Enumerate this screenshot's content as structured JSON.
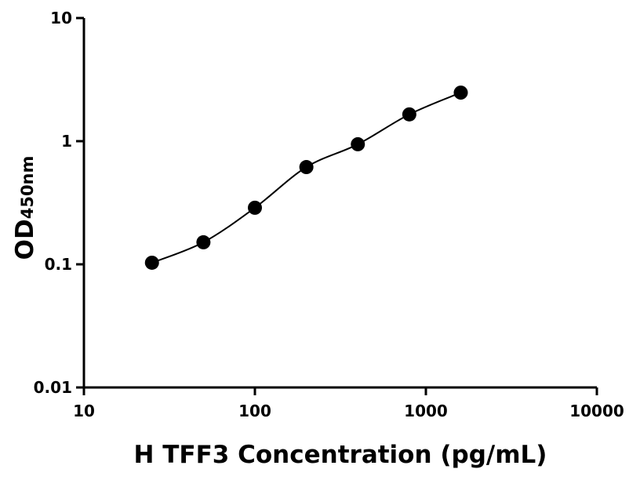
{
  "chart_data": {
    "type": "scatter",
    "x_label": "H TFF3 Concentration (pg/mL)",
    "y_label": "OD",
    "y_label_subscript": "450nm",
    "x": [
      25,
      50,
      100,
      200,
      400,
      800,
      1600
    ],
    "series": [
      {
        "color": "#000000",
        "values": [
          0.103,
          0.151,
          0.288,
          0.616,
          0.944,
          1.65,
          2.48
        ]
      }
    ],
    "xlim": [
      10,
      10000
    ],
    "ylim": [
      0.01,
      10
    ],
    "xticks": [
      10,
      100,
      1000,
      10000
    ],
    "yticks": [
      0.01,
      0.1,
      1,
      10
    ],
    "x_log": true,
    "y_log": true,
    "fit_line": true
  }
}
